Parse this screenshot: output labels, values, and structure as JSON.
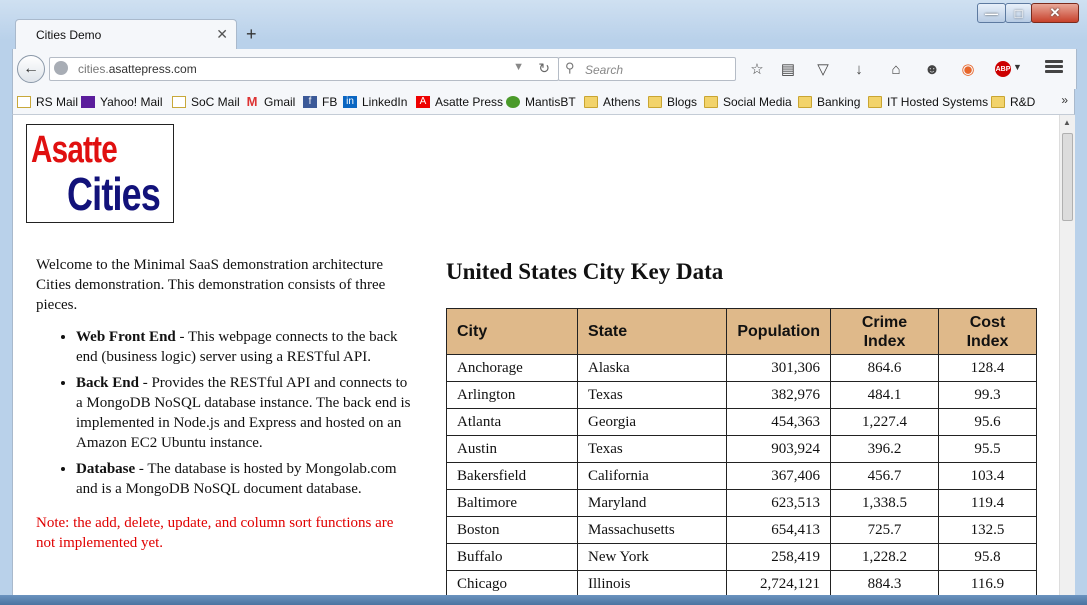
{
  "browser": {
    "tab_title": "Cities Demo",
    "url_domain_prefix": "cities.",
    "url_domain": "asattepress.com",
    "search_placeholder": "Search"
  },
  "bookmarks": [
    {
      "label": "RS Mail",
      "icon": "mail-icon"
    },
    {
      "label": "Yahoo! Mail",
      "icon": "yahoo-mail-icon"
    },
    {
      "label": "SoC Mail",
      "icon": "mail-icon"
    },
    {
      "label": "Gmail",
      "icon": "gmail-icon"
    },
    {
      "label": "FB",
      "icon": "facebook-icon"
    },
    {
      "label": "LinkedIn",
      "icon": "linkedin-icon"
    },
    {
      "label": "Asatte Press",
      "icon": "asatte-icon"
    },
    {
      "label": "MantisBT",
      "icon": "mantis-icon"
    },
    {
      "label": "Athens",
      "icon": "folder-icon"
    },
    {
      "label": "Blogs",
      "icon": "folder-icon"
    },
    {
      "label": "Social Media",
      "icon": "folder-icon"
    },
    {
      "label": "Banking",
      "icon": "folder-icon"
    },
    {
      "label": "IT Hosted Systems",
      "icon": "folder-icon"
    },
    {
      "label": "R&D",
      "icon": "folder-icon"
    }
  ],
  "logo": {
    "line1": "Asatte",
    "line2": "Cities"
  },
  "intro": {
    "welcome": "Welcome to the Minimal SaaS demonstration architecture Cities demonstration. This demonstration consists of three pieces.",
    "items": [
      {
        "title": "Web Front End",
        "text": " - This webpage connects to the back end (business logic) server using a RESTful API."
      },
      {
        "title": "Back End",
        "text": " - Provides the RESTful API and connects to a MongoDB NoSQL database instance. The back end is implemented in Node.js and Express and hosted on an Amazon EC2 Ubuntu instance."
      },
      {
        "title": "Database",
        "text": " - The database is hosted by Mongolab.com and is a MongoDB NoSQL document database."
      }
    ],
    "note": "Note: the add, delete, update, and column sort functions are not implemented yet."
  },
  "table": {
    "heading": "United States City Key Data",
    "headers": {
      "city": "City",
      "state": "State",
      "population": "Population",
      "crime_1": "Crime",
      "crime_2": "Index",
      "cost_1": "Cost",
      "cost_2": "Index"
    },
    "rows": [
      {
        "city": "Anchorage",
        "state": "Alaska",
        "population": "301,306",
        "crime": "864.6",
        "cost": "128.4"
      },
      {
        "city": "Arlington",
        "state": "Texas",
        "population": "382,976",
        "crime": "484.1",
        "cost": "99.3"
      },
      {
        "city": "Atlanta",
        "state": "Georgia",
        "population": "454,363",
        "crime": "1,227.4",
        "cost": "95.6"
      },
      {
        "city": "Austin",
        "state": "Texas",
        "population": "903,924",
        "crime": "396.2",
        "cost": "95.5"
      },
      {
        "city": "Bakersfield",
        "state": "California",
        "population": "367,406",
        "crime": "456.7",
        "cost": "103.4"
      },
      {
        "city": "Baltimore",
        "state": "Maryland",
        "population": "623,513",
        "crime": "1,338.5",
        "cost": "119.4"
      },
      {
        "city": "Boston",
        "state": "Massachusetts",
        "population": "654,413",
        "crime": "725.7",
        "cost": "132.5"
      },
      {
        "city": "Buffalo",
        "state": "New York",
        "population": "258,419",
        "crime": "1,228.2",
        "cost": "95.8"
      },
      {
        "city": "Chicago",
        "state": "Illinois",
        "population": "2,724,121",
        "crime": "884.3",
        "cost": "116.9"
      }
    ]
  },
  "colors": {
    "header_bg": "#dfb98a",
    "note": "#e00000",
    "logo_red": "#e01010",
    "logo_blue": "#12127a"
  }
}
